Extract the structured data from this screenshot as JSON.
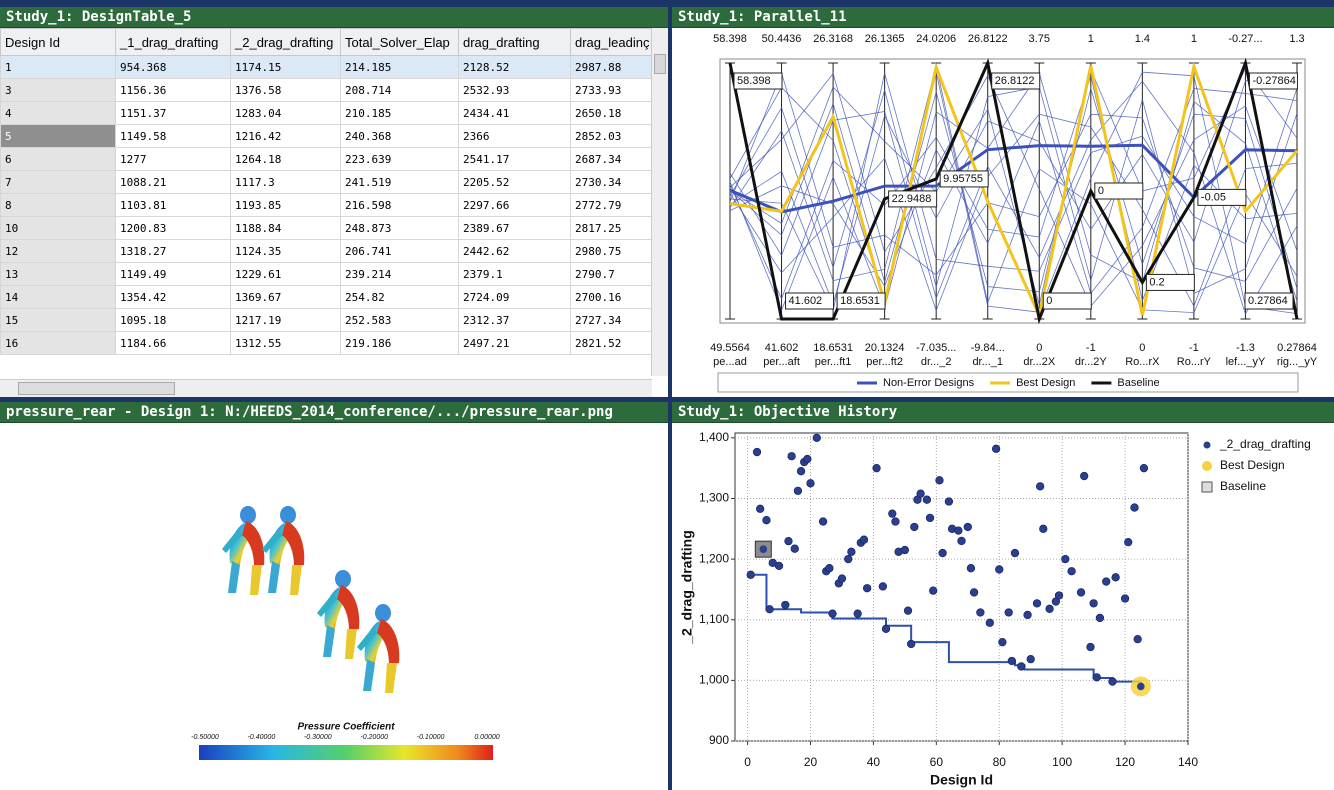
{
  "table": {
    "title": "Study_1: DesignTable_5",
    "columns": [
      "Design Id",
      "_1_drag_drafting",
      "_2_drag_drafting",
      "Total_Solver_Elap",
      "drag_drafting",
      "drag_leadinç"
    ],
    "rows": [
      [
        "1",
        "954.368",
        "1174.15",
        "214.185",
        "2128.52",
        "2987.88"
      ],
      [
        "3",
        "1156.36",
        "1376.58",
        "208.714",
        "2532.93",
        "2733.93"
      ],
      [
        "4",
        "1151.37",
        "1283.04",
        "210.185",
        "2434.41",
        "2650.18"
      ],
      [
        "5",
        "1149.58",
        "1216.42",
        "240.368",
        "2366",
        "2852.03"
      ],
      [
        "6",
        "1277",
        "1264.18",
        "223.639",
        "2541.17",
        "2687.34"
      ],
      [
        "7",
        "1088.21",
        "1117.3",
        "241.519",
        "2205.52",
        "2730.34"
      ],
      [
        "8",
        "1103.81",
        "1193.85",
        "216.598",
        "2297.66",
        "2772.79"
      ],
      [
        "10",
        "1200.83",
        "1188.84",
        "248.873",
        "2389.67",
        "2817.25"
      ],
      [
        "12",
        "1318.27",
        "1124.35",
        "206.741",
        "2442.62",
        "2980.75"
      ],
      [
        "13",
        "1149.49",
        "1229.61",
        "239.214",
        "2379.1",
        "2790.7"
      ],
      [
        "14",
        "1354.42",
        "1369.67",
        "254.82",
        "2724.09",
        "2700.16"
      ],
      [
        "15",
        "1095.18",
        "1217.19",
        "252.583",
        "2312.37",
        "2727.34"
      ],
      [
        "16",
        "1184.66",
        "1312.55",
        "219.186",
        "2497.21",
        "2821.52"
      ]
    ]
  },
  "image_panel": {
    "title": "pressure_rear - Design 1: N:/HEEDS_2014_conference/.../pressure_rear.png",
    "colorbar_title": "Pressure Coefficient",
    "colorbar_ticks": [
      "-0.50000",
      "-0.40000",
      "-0.30000",
      "-0.20000",
      "-0.10000",
      "0.00000"
    ]
  },
  "chart_data": [
    {
      "type": "parallel",
      "title": "Study_1: Parallel_11",
      "legend": "bottom",
      "axes": [
        {
          "name": "pe...ad",
          "ticks": [
            49.5564,
            58.398
          ]
        },
        {
          "name": "per...aft",
          "ticks": [
            41.602,
            50.4436
          ]
        },
        {
          "name": "per...ft1",
          "ticks": [
            18.6531,
            26.3168
          ]
        },
        {
          "name": "per...ft2",
          "ticks": [
            20.1324,
            26.1365
          ]
        },
        {
          "name": "dr..._2",
          "ticks": [
            {
              "value": -7.0353,
              "label": "-7.035..."
            },
            24.0206
          ]
        },
        {
          "name": "dr..._1",
          "ticks": [
            {
              "value": -9.8438,
              "label": "-9.84..."
            },
            26.8122
          ]
        },
        {
          "name": "dr...2X",
          "ticks": [
            0,
            3.75
          ]
        },
        {
          "name": "dr...2Y",
          "ticks": [
            -1,
            1
          ]
        },
        {
          "name": "Ro...rX",
          "ticks": [
            0,
            1.4
          ]
        },
        {
          "name": "Ro...rY",
          "ticks": [
            -1,
            1
          ]
        },
        {
          "name": "lef..._yY",
          "ticks": [
            -1.3,
            {
              "value": -0.27864,
              "label": "-0.27..."
            }
          ]
        },
        {
          "name": "rig..._yY",
          "ticks": [
            0.27864,
            1.3
          ]
        }
      ],
      "series": [
        {
          "name": "Non-Error Designs",
          "color": "#3c52b9",
          "values": [
            [
              54.0,
              44.5,
              25.1,
              21.0,
              20.5,
              -5.2,
              0.4,
              0.8,
              0.3,
              0.6,
              -0.5,
              0.4
            ],
            [
              53.8,
              48.9,
              20.2,
              25.5,
              -3.1,
              22.0,
              3.4,
              -0.7,
              1.2,
              -0.8,
              -1.1,
              1.1
            ],
            [
              54.2,
              42.3,
              23.4,
              22.8,
              15.0,
              3.0,
              1.2,
              0.9,
              0.1,
              0.2,
              -0.9,
              0.7
            ],
            [
              53.5,
              46.7,
              19.1,
              24.9,
              5.2,
              18.5,
              2.6,
              -0.3,
              0.9,
              -0.4,
              -0.35,
              1.25
            ],
            [
              54.4,
              49.6,
              24.0,
              20.6,
              22.9,
              -8.0,
              0.1,
              0.1,
              1.35,
              0.9,
              -1.25,
              0.3
            ],
            [
              53.9,
              43.2,
              21.7,
              23.9,
              -6.0,
              10.5,
              3.0,
              0.5,
              0.6,
              -0.9,
              -0.7,
              0.9
            ],
            [
              54.1,
              47.8,
              26.0,
              21.7,
              11.3,
              25.0,
              1.9,
              -0.9,
              0.4,
              0.4,
              -0.45,
              0.55
            ],
            [
              53.7,
              45.6,
              18.9,
              25.9,
              0.2,
              -2.3,
              0.7,
              0.3,
              1.0,
              -0.2,
              -1.0,
              1.2
            ],
            [
              54.3,
              41.9,
              22.9,
              20.4,
              18.1,
              14.6,
              3.6,
              -0.5,
              0.2,
              0.7,
              -0.6,
              0.35
            ],
            [
              53.6,
              50.1,
              20.8,
              22.1,
              -1.7,
              6.8,
              1.5,
              0.6,
              1.1,
              -0.6,
              -1.15,
              0.8
            ],
            [
              54.0,
              44.9,
              25.6,
              24.3,
              8.4,
              20.2,
              0.2,
              0.95,
              0.7,
              0.1,
              -0.3,
              1.0
            ],
            [
              53.4,
              48.1,
              19.8,
              21.3,
              23.7,
              -7.5,
              2.2,
              -0.1,
              0.05,
              -0.95,
              -0.8,
              0.45
            ],
            [
              54.6,
              43.8,
              24.6,
              25.0,
              -4.5,
              12.0,
              0.9,
              0.4,
              1.3,
              0.3,
              -1.28,
              0.65
            ],
            [
              53.3,
              46.2,
              22.1,
              20.9,
              13.5,
              1.0,
              2.9,
              -0.8,
              0.5,
              0.8,
              -0.4,
              1.15
            ]
          ],
          "selected_values": [
            54.0,
            45.3,
            22.18,
            23.25,
            9.1,
            14.4,
            2.54,
            0.35,
            0.95,
            -0.05,
            -0.625,
            0.95
          ]
        },
        {
          "name": "Best Design",
          "color": "#f2c41c",
          "values": [
            53.54,
            45.32,
            24.71,
            20.5,
            23.5,
            7.0,
            0.05,
            0.98,
            0.02,
            0.97,
            -0.87,
            0.95
          ]
        },
        {
          "name": "Baseline",
          "color": "#111111",
          "values": [
            58.398,
            41.602,
            18.6531,
            22.9488,
            9.95755,
            26.8122,
            0,
            0,
            0.2,
            -0.05,
            -0.27864,
            0.27864
          ]
        }
      ]
    },
    {
      "type": "scatter",
      "title": "Study_1: Objective History",
      "x_label": "Design Id",
      "y_label": "_2_drag_drafting",
      "xlim": [
        -4,
        140
      ],
      "ylim": [
        900,
        1408
      ],
      "xticks": [
        0,
        20,
        40,
        60,
        80,
        100,
        120,
        140
      ],
      "yticks": [
        900,
        {
          "value": 1000,
          "label": "1,000"
        },
        {
          "value": 1100,
          "label": "1,100"
        },
        {
          "value": 1200,
          "label": "1,200"
        },
        {
          "value": 1300,
          "label": "1,300"
        },
        {
          "value": 1400,
          "label": "1,400"
        }
      ],
      "grid": true,
      "legend": "top-right",
      "series": [
        {
          "name": "_2_drag_drafting",
          "color": "#2b3f91",
          "x": [
            1,
            3,
            4,
            6,
            7,
            8,
            10,
            12,
            13,
            14,
            15,
            16,
            17,
            18,
            19,
            20,
            22,
            24,
            25,
            26,
            27,
            29,
            30,
            32,
            33,
            35,
            36,
            37,
            38,
            41,
            43,
            44,
            46,
            47,
            48,
            50,
            51,
            52,
            53,
            54,
            55,
            57,
            58,
            59,
            61,
            62,
            64,
            65,
            67,
            68,
            70,
            71,
            72,
            74,
            77,
            79,
            80,
            81,
            83,
            84,
            85,
            87,
            89,
            90,
            92,
            93,
            94,
            96,
            98,
            99,
            101,
            103,
            106,
            107,
            109,
            110,
            111,
            112,
            114,
            116,
            117,
            120,
            121,
            123,
            124,
            126
          ],
          "values": [
            1174.15,
            1376.58,
            1283.04,
            1264.18,
            1117.3,
            1193.85,
            1188.84,
            1124.35,
            1229.61,
            1369.67,
            1217.19,
            1312.55,
            1345,
            1360,
            1365,
            1325,
            1400,
            1262,
            1180,
            1185,
            1110,
            1160,
            1168,
            1200,
            1212,
            1110,
            1227,
            1232,
            1152,
            1350,
            1155,
            1085,
            1275,
            1262,
            1212,
            1215,
            1115,
            1060,
            1253,
            1298,
            1308,
            1298,
            1268,
            1148,
            1330,
            1210,
            1295,
            1250,
            1247,
            1230,
            1253,
            1185,
            1145,
            1112,
            1095,
            1382,
            1183,
            1063,
            1112,
            1032,
            1210,
            1023,
            1108,
            1035,
            1127,
            1320,
            1250,
            1118,
            1130,
            1140,
            1200,
            1180,
            1145,
            1337,
            1055,
            1127,
            1005,
            1103,
            1163,
            998,
            1170,
            1135,
            1228,
            1285,
            1068,
            1350
          ]
        },
        {
          "name": "Best Design",
          "color": "#f6d23e",
          "x": [
            125
          ],
          "values": [
            990
          ]
        },
        {
          "name": "Baseline",
          "color": "#8c8c8c",
          "x": [
            5
          ],
          "values": [
            1216.42
          ]
        }
      ],
      "step": {
        "color": "#2d4fae",
        "x": [
          1,
          6,
          6,
          17,
          17,
          27,
          27,
          44,
          44,
          52,
          52,
          64,
          64,
          85,
          85,
          88,
          88,
          110,
          110,
          116,
          116,
          125,
          125
        ],
        "values": [
          1174.15,
          1174.15,
          1117.3,
          1117.3,
          1112,
          1112,
          1102,
          1102,
          1090,
          1090,
          1063,
          1063,
          1030,
          1030,
          1025,
          1025,
          1018,
          1018,
          1004,
          1004,
          998,
          998,
          990
        ]
      }
    }
  ]
}
